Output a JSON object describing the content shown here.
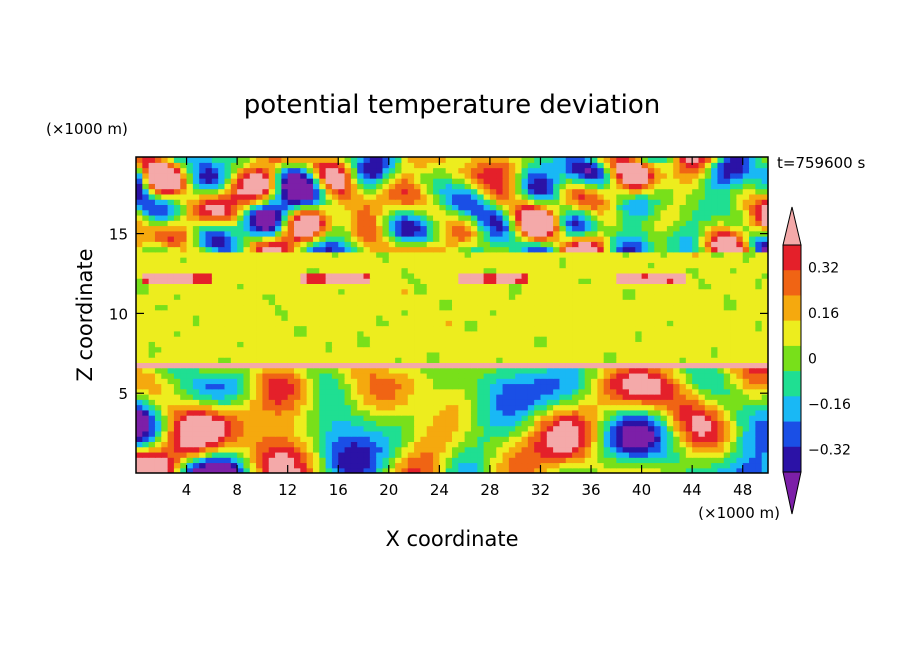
{
  "chart_data": {
    "type": "heatmap",
    "title": "potential temperature deviation",
    "xlabel": "X coordinate",
    "ylabel": "Z coordinate",
    "x_unit": "(×1000 m)",
    "y_unit": "(×1000 m)",
    "time_label": "t=759600 s",
    "xlim": [
      0,
      50
    ],
    "ylim": [
      0,
      19.8
    ],
    "x_ticks": [
      4,
      8,
      12,
      16,
      20,
      24,
      28,
      32,
      36,
      40,
      44,
      48
    ],
    "y_ticks": [
      5,
      10,
      15
    ],
    "colorbar": {
      "levels": [
        -0.4,
        -0.32,
        -0.24,
        -0.16,
        -0.08,
        0,
        0.08,
        0.16,
        0.24,
        0.32,
        0.4
      ],
      "tick_labels": [
        "0.32",
        "0.16",
        "0",
        "−0.16",
        "−0.32"
      ],
      "tick_values": [
        0.32,
        0.16,
        0,
        -0.16,
        -0.32
      ],
      "colors": [
        "#7c1fa8",
        "#2b12a6",
        "#1a4fe6",
        "#19b8f5",
        "#1fdf92",
        "#78e01a",
        "#eded1e",
        "#f5a90e",
        "#f06414",
        "#e4202a",
        "#f4a9a9"
      ],
      "extend": "both"
    },
    "layers": [
      {
        "z_range": [
          0,
          6.5
        ],
        "description_value": "strong turbulent eddies, values -0.4 to 0.4"
      },
      {
        "z_range": [
          6.5,
          7.0
        ],
        "value": 0.4
      },
      {
        "z_range": [
          7.0,
          14.0
        ],
        "value": 0.02
      },
      {
        "z_range": [
          14.0,
          19.8
        ],
        "description_value": "mixed structures, values -0.4 to 0.4"
      }
    ]
  }
}
